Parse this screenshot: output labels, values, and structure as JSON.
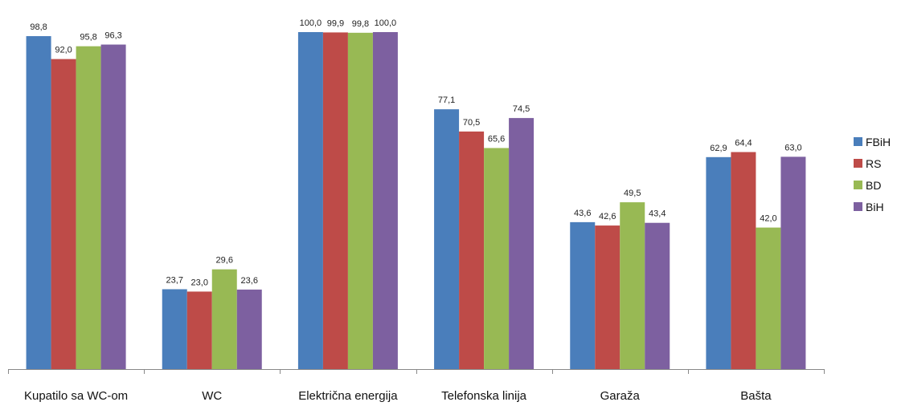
{
  "chart_data": {
    "type": "bar",
    "categories": [
      "Kupatilo sa WC-om",
      "WC",
      "Električna energija",
      "Telefonska linija",
      "Garaža",
      "Bašta"
    ],
    "series": [
      {
        "name": "FBiH",
        "color": "#4a7ebb",
        "values": [
          98.8,
          23.7,
          100.0,
          77.1,
          43.6,
          62.9
        ],
        "labels": [
          "98,8",
          "23,7",
          "100,0",
          "77,1",
          "43,6",
          "62,9"
        ]
      },
      {
        "name": "RS",
        "color": "#be4b48",
        "values": [
          92.0,
          23.0,
          99.9,
          70.5,
          42.6,
          64.4
        ],
        "labels": [
          "92,0",
          "23,0",
          "99,9",
          "70,5",
          "42,6",
          "64,4"
        ]
      },
      {
        "name": "BD",
        "color": "#98b954",
        "values": [
          95.8,
          29.6,
          99.8,
          65.6,
          49.5,
          42.0
        ],
        "labels": [
          "95,8",
          "29,6",
          "99,8",
          "65,6",
          "49,5",
          "42,0"
        ]
      },
      {
        "name": "BiH",
        "color": "#7d60a0",
        "values": [
          96.3,
          23.6,
          100.0,
          74.5,
          43.4,
          63.0
        ],
        "labels": [
          "96,3",
          "23,6",
          "100,0",
          "74,5",
          "43,4",
          "63,0"
        ]
      }
    ],
    "title": "",
    "xlabel": "",
    "ylabel": "",
    "ylim": [
      0,
      100
    ],
    "grid": false,
    "legend": "right"
  }
}
